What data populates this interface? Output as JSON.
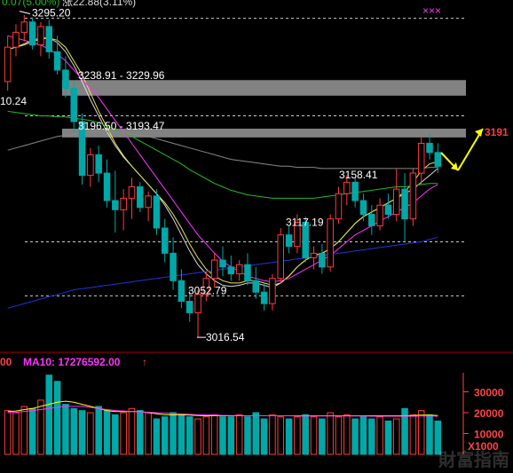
{
  "chart_data": {
    "type": "candlestick",
    "colors": {
      "background": "#000000",
      "up": "#ff3b3b",
      "down": "#00a8a8",
      "ma_white": "#d9d9d9",
      "ma_yellow": "#e8e84a",
      "ma_magenta": "#ff33ff",
      "ma_green": "#22bb22",
      "ma_blue": "#2233dd",
      "ma_gray": "#888888",
      "level_band": "#999999",
      "dashed": "#cccccc",
      "arrow": "#ffff00",
      "vol_ma5": "#ffff00",
      "vol_ma10": "#ff33ff",
      "vol_axis": "#ff4444"
    },
    "top_marker": "×××",
    "price": {
      "ylim": [
        3005,
        3305
      ],
      "candles": [
        [
          3240,
          3280,
          3232,
          3270
        ],
        [
          3270,
          3290,
          3262,
          3283
        ],
        [
          3283,
          3298,
          3275,
          3292
        ],
        [
          3292,
          3296,
          3268,
          3272
        ],
        [
          3272,
          3292,
          3262,
          3288
        ],
        [
          3288,
          3294,
          3260,
          3266
        ],
        [
          3266,
          3280,
          3246,
          3250
        ],
        [
          3250,
          3262,
          3226,
          3234
        ],
        [
          3234,
          3240,
          3196,
          3205
        ],
        [
          3205,
          3212,
          3150,
          3158
        ],
        [
          3158,
          3182,
          3148,
          3176
        ],
        [
          3176,
          3184,
          3152,
          3160
        ],
        [
          3160,
          3172,
          3130,
          3136
        ],
        [
          3136,
          3162,
          3108,
          3128
        ],
        [
          3128,
          3146,
          3110,
          3138
        ],
        [
          3138,
          3156,
          3120,
          3148
        ],
        [
          3148,
          3152,
          3126,
          3130
        ],
        [
          3130,
          3144,
          3118,
          3140
        ],
        [
          3140,
          3146,
          3106,
          3112
        ],
        [
          3112,
          3120,
          3082,
          3090
        ],
        [
          3090,
          3104,
          3058,
          3066
        ],
        [
          3066,
          3076,
          3042,
          3048
        ],
        [
          3048,
          3058,
          3030,
          3038
        ],
        [
          3038,
          3058,
          3016,
          3054
        ],
        [
          3054,
          3074,
          3048,
          3068
        ],
        [
          3068,
          3090,
          3060,
          3084
        ],
        [
          3084,
          3096,
          3070,
          3078
        ],
        [
          3078,
          3088,
          3066,
          3072
        ],
        [
          3072,
          3084,
          3066,
          3080
        ],
        [
          3080,
          3090,
          3062,
          3066
        ],
        [
          3066,
          3078,
          3050,
          3056
        ],
        [
          3056,
          3064,
          3040,
          3046
        ],
        [
          3046,
          3072,
          3040,
          3068
        ],
        [
          3068,
          3112,
          3064,
          3106
        ],
        [
          3106,
          3114,
          3090,
          3096
        ],
        [
          3096,
          3124,
          3090,
          3117
        ],
        [
          3117,
          3122,
          3082,
          3086
        ],
        [
          3086,
          3096,
          3076,
          3090
        ],
        [
          3090,
          3098,
          3072,
          3078
        ],
        [
          3078,
          3124,
          3074,
          3120
        ],
        [
          3120,
          3148,
          3116,
          3142
        ],
        [
          3142,
          3158,
          3132,
          3152
        ],
        [
          3152,
          3156,
          3130,
          3136
        ],
        [
          3136,
          3142,
          3118,
          3124
        ],
        [
          3124,
          3132,
          3106,
          3114
        ],
        [
          3114,
          3138,
          3110,
          3132
        ],
        [
          3132,
          3142,
          3120,
          3124
        ],
        [
          3124,
          3164,
          3118,
          3146
        ],
        [
          3146,
          3160,
          3100,
          3120
        ],
        [
          3120,
          3164,
          3114,
          3160
        ],
        [
          3160,
          3192,
          3150,
          3186
        ],
        [
          3186,
          3194,
          3172,
          3178
        ],
        [
          3178,
          3186,
          3160,
          3166
        ]
      ],
      "moving_averages": [
        {
          "color": "ma_white",
          "values": [
            3268,
            3270,
            3273,
            3276,
            3278,
            3278,
            3274,
            3266,
            3254,
            3240,
            3224,
            3210,
            3196,
            3184,
            3174,
            3166,
            3158,
            3150,
            3142,
            3132,
            3120,
            3106,
            3092,
            3080,
            3072,
            3066,
            3062,
            3061,
            3062,
            3064,
            3064,
            3062,
            3060,
            3064,
            3070,
            3078,
            3084,
            3088,
            3090,
            3094,
            3100,
            3108,
            3116,
            3122,
            3126,
            3130,
            3134,
            3138,
            3142,
            3146,
            3152,
            3158,
            3164
          ]
        },
        {
          "color": "ma_yellow",
          "values": [
            3268,
            3270,
            3272,
            3275,
            3277,
            3278,
            3276,
            3270,
            3258,
            3246,
            3230,
            3214,
            3200,
            3186,
            3175,
            3166,
            3158,
            3150,
            3142,
            3134,
            3124,
            3112,
            3098,
            3086,
            3076,
            3070,
            3066,
            3064,
            3064,
            3066,
            3066,
            3064,
            3062,
            3064,
            3070,
            3078,
            3084,
            3088,
            3090,
            3094,
            3100,
            3108,
            3116,
            3122,
            3126,
            3130,
            3134,
            3138,
            3144,
            3152,
            3162,
            3168,
            3170
          ]
        },
        {
          "color": "ma_magenta",
          "values": [
            3280,
            3278,
            3276,
            3274,
            3272,
            3268,
            3264,
            3258,
            3250,
            3242,
            3234,
            3226,
            3216,
            3206,
            3196,
            3186,
            3176,
            3166,
            3156,
            3146,
            3136,
            3126,
            3116,
            3106,
            3098,
            3090,
            3083,
            3078,
            3074,
            3070,
            3068,
            3066,
            3065,
            3066,
            3068,
            3072,
            3076,
            3080,
            3084,
            3088,
            3094,
            3100,
            3106,
            3110,
            3114,
            3118,
            3122,
            3126,
            3130,
            3134,
            3140,
            3146,
            3150
          ]
        },
        {
          "color": "ma_green",
          "values": [
            3214,
            3213,
            3212,
            3211,
            3210,
            3210,
            3209,
            3209,
            3208,
            3207,
            3206,
            3204,
            3201,
            3198,
            3195,
            3192,
            3188,
            3184,
            3180,
            3176,
            3172,
            3168,
            3163,
            3159,
            3155,
            3151,
            3148,
            3145,
            3143,
            3141,
            3140,
            3139,
            3138,
            3138,
            3138,
            3138,
            3138,
            3138,
            3139,
            3140,
            3141,
            3142,
            3143,
            3144,
            3145,
            3146,
            3147,
            3148,
            3148,
            3149,
            3150,
            3151,
            3151
          ]
        },
        {
          "color": "ma_gray",
          "values": [
            3180,
            3182,
            3184,
            3186,
            3188,
            3190,
            3192,
            3193,
            3194,
            3195,
            3196,
            3196,
            3196,
            3196,
            3195,
            3194,
            3193,
            3192,
            3190,
            3188,
            3186,
            3184,
            3182,
            3180,
            3178,
            3176,
            3174,
            3172,
            3171,
            3170,
            3169,
            3168,
            3167,
            3166,
            3166,
            3165,
            3165,
            3165,
            3164,
            3164,
            3164,
            3164,
            3164,
            3164,
            3164,
            3164,
            3164,
            3164,
            3164,
            3164,
            3164,
            3165,
            3165
          ]
        },
        {
          "color": "ma_blue",
          "values": [
            3042,
            3044,
            3046,
            3048,
            3050,
            3052,
            3054,
            3056,
            3058,
            3059,
            3060,
            3061,
            3062,
            3063,
            3064,
            3065,
            3066,
            3067,
            3068,
            3069,
            3070,
            3071,
            3072,
            3073,
            3074,
            3075,
            3076,
            3077,
            3078,
            3079,
            3080,
            3081,
            3082,
            3083,
            3084,
            3085,
            3086,
            3087,
            3088,
            3089,
            3090,
            3091,
            3092,
            3093,
            3094,
            3095,
            3096,
            3097,
            3098,
            3099,
            3100,
            3102,
            3104
          ]
        }
      ],
      "levels": [
        {
          "value": 3295.2,
          "text": "3295.20",
          "style": "dashed"
        },
        {
          "value": 3234.4,
          "text": "3238.91 - 3229.96",
          "style": "band",
          "from": 3238.91,
          "to": 3229.96
        },
        {
          "value": 3195.0,
          "text": "3196.50 - 3193.47",
          "style": "band",
          "from": 3196.5,
          "to": 3193.47
        },
        {
          "value": 3210,
          "text": "",
          "style": "dashed"
        },
        {
          "value": 3158.41,
          "text": "3158.41",
          "style": "none"
        },
        {
          "value": 3117.19,
          "text": "3117.19",
          "style": "none"
        },
        {
          "value": 3100,
          "text": "",
          "style": "dashed"
        },
        {
          "value": 3052.79,
          "text": "3052.79",
          "style": "dashed"
        },
        {
          "value": 3016.54,
          "text": "3016.54",
          "style": "none"
        }
      ],
      "left_edge_label": "10.24",
      "target_label": "3191"
    },
    "volume": {
      "series_labels": [
        {
          "text": "00",
          "color": "vol_axis"
        },
        {
          "text": "MA10: 17276592.00",
          "color": "vol_ma10"
        },
        {
          "text": "↑",
          "color": "vol_axis"
        }
      ],
      "ylim": [
        0,
        40000
      ],
      "ticks": [
        "30000",
        "20000",
        "10000"
      ],
      "unit": "X1000",
      "values": [
        21000,
        20000,
        23000,
        22000,
        26000,
        38000,
        35000,
        24000,
        22000,
        21000,
        20000,
        23000,
        21000,
        19000,
        20000,
        22000,
        21000,
        20000,
        17000,
        18000,
        20000,
        19000,
        18000,
        17000,
        18000,
        19000,
        18000,
        18000,
        19000,
        18000,
        20000,
        17000,
        19000,
        18000,
        17000,
        18000,
        19000,
        18000,
        17000,
        20000,
        18000,
        19000,
        17000,
        18000,
        17000,
        18000,
        16000,
        17000,
        22000,
        19000,
        21000,
        19000,
        16000
      ],
      "ma5": [
        20500,
        20800,
        21500,
        22000,
        23000,
        24000,
        25000,
        25500,
        25000,
        24000,
        23000,
        22000,
        21000,
        20500,
        20500,
        20500,
        20500,
        20000,
        19500,
        19000,
        19000,
        19000,
        18800,
        18600,
        18500,
        18500,
        18500,
        18500,
        18500,
        18500,
        18500,
        18500,
        18500,
        18500,
        18500,
        18500,
        18500,
        18500,
        18500,
        18500,
        18500,
        18500,
        18500,
        18500,
        18500,
        18500,
        18500,
        18500,
        18500,
        18600,
        18800,
        18800,
        18600
      ],
      "ma10": [
        20000,
        20200,
        20600,
        21000,
        21500,
        22000,
        22500,
        23000,
        23000,
        23000,
        22500,
        22000,
        21500,
        21000,
        20800,
        20600,
        20400,
        20200,
        20000,
        19800,
        19600,
        19400,
        19200,
        19000,
        18900,
        18800,
        18700,
        18600,
        18600,
        18500,
        18500,
        18500,
        18500,
        18500,
        18500,
        18400,
        18400,
        18400,
        18400,
        18400,
        18400,
        18400,
        18400,
        18400,
        18300,
        18300,
        18300,
        18300,
        18300,
        18300,
        18400,
        18400,
        18300
      ]
    },
    "header_fragments": [
      "0.07",
      "5.00%",
      "涨22.88",
      "3.11%"
    ]
  },
  "watermark": "財富指南"
}
